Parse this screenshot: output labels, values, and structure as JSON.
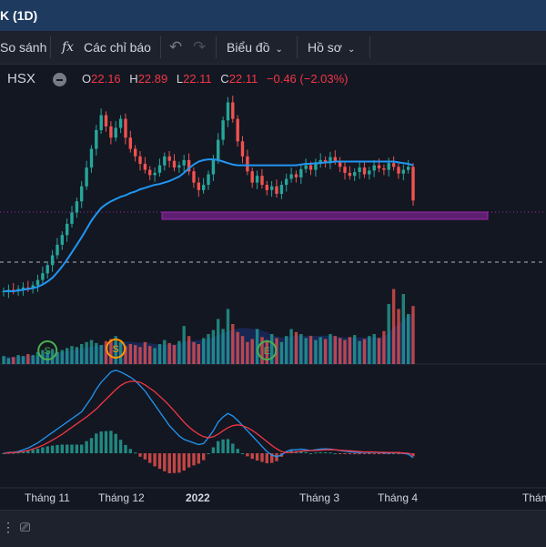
{
  "window": {
    "title": "K (1D)"
  },
  "toolbar": {
    "compare_label": "So sánh",
    "indicators_label": "Các chỉ báo",
    "chart_label": "Biểu đồ",
    "profile_label": "Hồ sơ",
    "fx_glyph": "fx",
    "undo_glyph": "↶",
    "redo_glyph": "↷"
  },
  "legend": {
    "exchange": "HSX",
    "open_key": "O",
    "open": "22.16",
    "high_key": "H",
    "high": "22.89",
    "low_key": "L",
    "low": "22.11",
    "close_key": "C",
    "close": "22.11",
    "change": "−0.46 (−2.03%)"
  },
  "colors": {
    "up": "#26a69a",
    "down": "#ef5350",
    "ma": "#2196f3",
    "zone": "#9c27b0",
    "macd": "#2196f3",
    "signal": "#f23645"
  },
  "markers": [
    {
      "label": "S",
      "color": "#4caf50"
    },
    {
      "label": "S",
      "color": "#ff9800"
    },
    {
      "label": "E",
      "color": "#4caf50"
    }
  ],
  "chart_data": {
    "type": "candlestick",
    "x_labels": [
      "Tháng 11",
      "Tháng 12",
      "2022",
      "Tháng 3",
      "Tháng 4",
      "Tháng"
    ],
    "last": {
      "open": 22.16,
      "high": 22.89,
      "low": 22.11,
      "close": 22.11,
      "change": -0.46,
      "change_pct": -2.03
    },
    "series": [
      {
        "name": "price",
        "values": [
          10,
          10.2,
          10.1,
          10.3,
          10.5,
          10.4,
          10.8,
          11.5,
          12.4,
          13.5,
          14.8,
          16.2,
          17.5,
          19,
          20.5,
          22,
          24,
          26.5,
          29,
          31.5,
          33.5,
          32,
          30.5,
          31.8,
          33,
          30.5,
          29,
          28,
          27,
          26.2,
          25.5,
          25.8,
          26.8,
          28,
          27.4,
          26.5,
          26.8,
          27.5,
          26,
          24.5,
          23.5,
          24.2,
          25.6,
          27.5,
          30.2,
          32.8,
          35.2,
          33,
          30,
          28,
          26,
          24.5,
          25.4,
          24.2,
          23.5,
          24,
          23,
          24.2,
          25,
          25.6,
          25.2,
          26.3,
          26.8,
          26.2,
          27,
          27.5,
          27.2,
          27.9,
          27.4,
          26.6,
          25.8,
          25.4,
          25.9,
          26.5,
          25.6,
          26.1,
          26.8,
          26.4,
          26.2,
          27.1,
          26.6,
          25.7,
          26.2,
          26.6,
          22.11
        ]
      },
      {
        "name": "ma",
        "values": [
          10,
          10,
          10,
          10.1,
          10.2,
          10.3,
          10.4,
          10.6,
          10.9,
          11.3,
          11.8,
          12.5,
          13.3,
          14.2,
          15.2,
          16.2,
          17.2,
          18.3,
          19.4,
          20.3,
          21.1,
          21.6,
          22,
          22.3,
          22.6,
          22.8,
          23.1,
          23.3,
          23.6,
          23.8,
          24,
          24.2,
          24.3,
          24.5,
          24.7,
          25,
          25.3,
          25.8,
          26.4,
          26.9,
          27.3,
          27.5,
          27.6,
          27.6,
          27.5,
          27.3,
          27.1,
          26.9,
          26.8,
          26.8,
          26.8,
          26.8,
          26.8,
          26.8,
          26.8,
          26.8,
          26.8,
          26.8,
          26.8,
          26.8,
          26.8,
          26.9,
          27,
          27,
          27.1,
          27.1,
          27.2,
          27.2,
          27.3,
          27.3,
          27.3,
          27.3,
          27.3,
          27.3,
          27.3,
          27.3,
          27.3,
          27.3,
          27.3,
          27.3,
          27.3,
          27.2,
          27.1,
          27,
          26.8
        ]
      },
      {
        "name": "volume",
        "values": [
          8,
          6,
          7,
          9,
          8,
          10,
          9,
          12,
          14,
          13,
          15,
          12,
          14,
          16,
          18,
          17,
          20,
          22,
          24,
          21,
          19,
          23,
          25,
          28,
          22,
          18,
          20,
          19,
          17,
          22,
          18,
          16,
          20,
          24,
          21,
          19,
          23,
          38,
          28,
          22,
          20,
          26,
          30,
          34,
          45,
          35,
          55,
          40,
          32,
          28,
          22,
          25,
          35,
          27,
          24,
          30,
          26,
          22,
          28,
          35,
          32,
          30,
          26,
          28,
          24,
          27,
          25,
          30,
          28,
          26,
          24,
          27,
          29,
          23,
          25,
          28,
          30,
          26,
          33,
          60,
          75,
          55,
          70,
          50,
          58
        ]
      },
      {
        "name": "macd",
        "values": [
          0,
          0.02,
          0.03,
          0.05,
          0.1,
          0.15,
          0.22,
          0.3,
          0.4,
          0.5,
          0.6,
          0.7,
          0.8,
          0.9,
          1,
          1.1,
          1.2,
          1.4,
          1.6,
          1.85,
          2.05,
          2.2,
          2.35,
          2.4,
          2.35,
          2.28,
          2.2,
          2.1,
          1.95,
          1.8,
          1.6,
          1.4,
          1.2,
          1,
          0.8,
          0.65,
          0.5,
          0.4,
          0.35,
          0.3,
          0.25,
          0.28,
          0.45,
          0.65,
          0.9,
          1.05,
          1.15,
          1.08,
          0.95,
          0.8,
          0.65,
          0.5,
          0.35,
          0.2,
          0.05,
          -0.05,
          -0.1,
          -0.05,
          0.05,
          0.1,
          0.1,
          0.12,
          0.1,
          0.08,
          0.1,
          0.12,
          0.13,
          0.12,
          0.1,
          0.08,
          0.06,
          0.04,
          0.03,
          0.02,
          0.03,
          0.02,
          0.03,
          0.02,
          0.01,
          0,
          0.02,
          0.01,
          0,
          -0.03,
          -0.13
        ]
      },
      {
        "name": "signal",
        "values": [
          0,
          0.01,
          0.02,
          0.03,
          0.05,
          0.08,
          0.12,
          0.17,
          0.23,
          0.3,
          0.38,
          0.46,
          0.55,
          0.65,
          0.75,
          0.85,
          0.95,
          1.05,
          1.16,
          1.28,
          1.42,
          1.56,
          1.7,
          1.84,
          1.96,
          2.04,
          2.08,
          2.08,
          2.05,
          1.98,
          1.88,
          1.78,
          1.65,
          1.52,
          1.38,
          1.22,
          1.06,
          0.9,
          0.76,
          0.65,
          0.55,
          0.48,
          0.45,
          0.48,
          0.55,
          0.65,
          0.74,
          0.8,
          0.82,
          0.8,
          0.74,
          0.66,
          0.56,
          0.45,
          0.34,
          0.23,
          0.13,
          0.05,
          0.02,
          0.02,
          0.04,
          0.06,
          0.07,
          0.08,
          0.08,
          0.09,
          0.1,
          0.1,
          0.1,
          0.09,
          0.08,
          0.07,
          0.06,
          0.05,
          0.04,
          0.04,
          0.04,
          0.03,
          0.03,
          0.02,
          0.02,
          0.02,
          0.01,
          0,
          -0.04
        ]
      }
    ]
  }
}
